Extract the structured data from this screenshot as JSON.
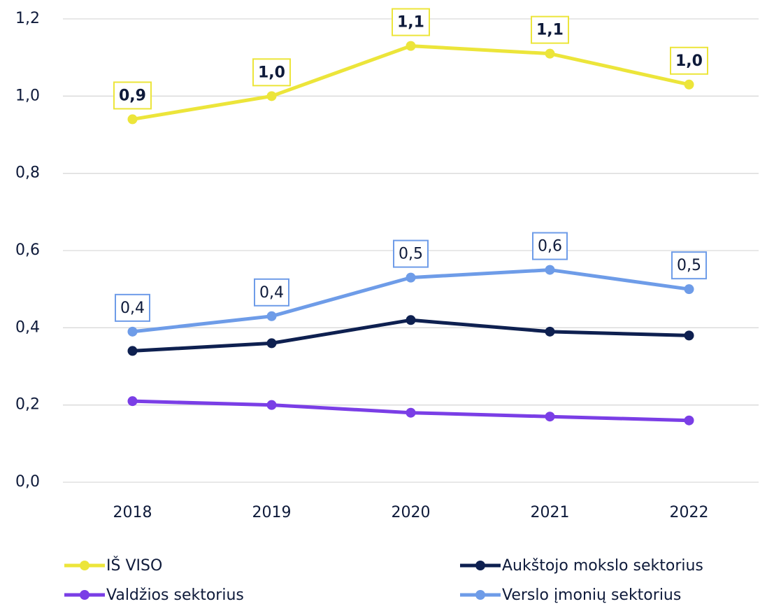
{
  "chart_data": {
    "type": "line",
    "categories": [
      "2018",
      "2019",
      "2020",
      "2021",
      "2022"
    ],
    "series": [
      {
        "name": "IŠ VISO",
        "color": "#ece53a",
        "values": [
          0.94,
          1.0,
          1.13,
          1.11,
          1.03
        ],
        "value_labels": [
          "0,9",
          "1,0",
          "1,1",
          "1,1",
          "1,0"
        ]
      },
      {
        "name": "Aukštojo mokslo sektorius",
        "color": "#0e2050",
        "values": [
          0.34,
          0.36,
          0.42,
          0.39,
          0.38
        ]
      },
      {
        "name": "Valdžios sektorius",
        "color": "#7a3ee6",
        "values": [
          0.21,
          0.2,
          0.18,
          0.17,
          0.16
        ]
      },
      {
        "name": "Verslo įmonių sektorius",
        "color": "#6e9ce8",
        "values": [
          0.39,
          0.43,
          0.53,
          0.55,
          0.5
        ],
        "value_labels": [
          "0,4",
          "0,4",
          "0,5",
          "0,6",
          "0,5"
        ]
      }
    ],
    "ylim": [
      0,
      1.2
    ],
    "yticks": [
      {
        "value": 0,
        "label": "0,0"
      },
      {
        "value": 0.2,
        "label": "0,2"
      },
      {
        "value": 0.4,
        "label": "0,4"
      },
      {
        "value": 0.6,
        "label": "0,6"
      },
      {
        "value": 0.8,
        "label": "0,8"
      },
      {
        "value": 1.0,
        "label": "1,0"
      },
      {
        "value": 1.2,
        "label": "1,2"
      }
    ],
    "grid": true
  }
}
